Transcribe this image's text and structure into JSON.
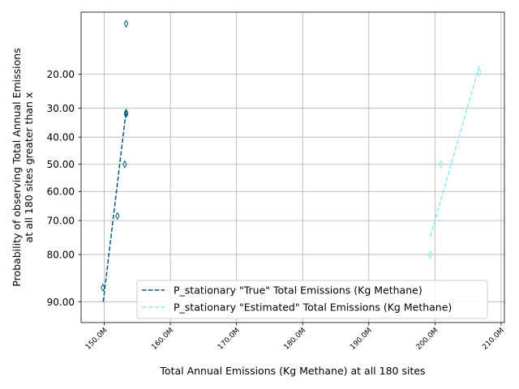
{
  "chart_data": {
    "type": "scatter",
    "xlabel": "Total Annual Emissions (Kg Methane) at all 180 sites",
    "ylabel_lines": [
      "Probability of observing Total Annual Emissions",
      "at all 180 sites greater than x"
    ],
    "xlim": [
      146500000,
      210500000
    ],
    "x_ticks": [
      150000000,
      160000000,
      170000000,
      180000000,
      190000000,
      200000000,
      210000000
    ],
    "x_tick_labels": [
      "150.0M",
      "160.0M",
      "170.0M",
      "180.0M",
      "190.0M",
      "200.0M",
      "210.0M"
    ],
    "y_scale": "probit",
    "ylim": [
      7.8,
      93.0
    ],
    "y_ticks": [
      20,
      30,
      40,
      50,
      60,
      70,
      80,
      90
    ],
    "y_tick_labels": [
      "20.00",
      "30.00",
      "40.00",
      "50.00",
      "60.00",
      "70.00",
      "80.00",
      "90.00"
    ],
    "grid": true,
    "legend_position": "lower-right",
    "series": [
      {
        "name": "P_stationary \"True\" Total Emissions (Kg Methane)",
        "color": "#005b77",
        "points": [
          {
            "x": 153300000,
            "y": 9.5
          },
          {
            "x": 153300000,
            "y": 31.5
          },
          {
            "x": 153300000,
            "y": 32.0
          },
          {
            "x": 153100000,
            "y": 50.0
          },
          {
            "x": 152000000,
            "y": 68.5
          },
          {
            "x": 149800000,
            "y": 87.5
          }
        ],
        "fit_line": [
          {
            "x": 149850000,
            "y": 90.0
          },
          {
            "x": 153300000,
            "y": 31.0
          }
        ]
      },
      {
        "name": "P_stationary \"Estimated\" Total Emissions (Kg Methane)",
        "color": "#8ee8f8",
        "points": [
          {
            "x": 206700000,
            "y": 19.5
          },
          {
            "x": 200900000,
            "y": 50.0
          },
          {
            "x": 199300000,
            "y": 80.0
          }
        ],
        "fit_line": [
          {
            "x": 199300000,
            "y": 75.0
          },
          {
            "x": 206800000,
            "y": 17.5
          }
        ]
      }
    ]
  }
}
